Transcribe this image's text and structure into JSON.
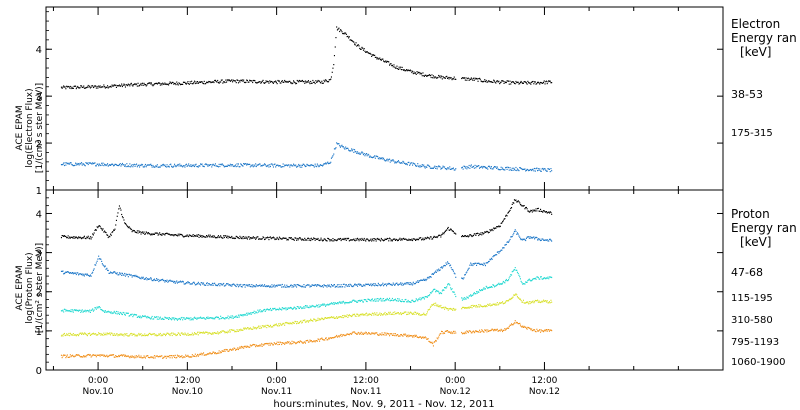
{
  "chart_data": [
    {
      "type": "scatter",
      "panel": "electron",
      "ylabel_lines": [
        "ACE EPAM",
        "log(Electron Flux)",
        "[1/(cm² s ster MeV)]"
      ],
      "legend_title": [
        "Electron",
        "Energy ran",
        "[keV]"
      ],
      "ylim": [
        1,
        4.9
      ],
      "yticks": [
        1,
        2,
        3,
        4
      ],
      "series": [
        {
          "name": "38-53",
          "color": "#000000",
          "points": [
            [
              -5,
              3.18
            ],
            [
              0,
              3.2
            ],
            [
              6,
              3.25
            ],
            [
              12,
              3.28
            ],
            [
              18,
              3.32
            ],
            [
              24,
              3.3
            ],
            [
              30,
              3.3
            ],
            [
              31.2,
              3.35
            ],
            [
              31.6,
              3.7
            ],
            [
              32,
              4.45
            ],
            [
              33,
              4.35
            ],
            [
              35,
              4.05
            ],
            [
              37,
              3.85
            ],
            [
              40,
              3.62
            ],
            [
              42,
              3.52
            ],
            [
              44,
              3.45
            ],
            [
              46,
              3.4
            ],
            [
              48,
              3.38
            ],
            [
              50,
              3.36
            ],
            [
              51,
              3.35
            ],
            [
              52,
              3.32
            ],
            [
              54,
              3.3
            ],
            [
              56,
              3.28
            ],
            [
              58,
              3.28
            ],
            [
              61,
              3.3
            ]
          ],
          "gaps": [
            [
              48.1,
              48.8
            ]
          ]
        },
        {
          "name": "175-315",
          "color": "#1f78c8",
          "points": [
            [
              -5,
              1.55
            ],
            [
              0,
              1.55
            ],
            [
              6,
              1.52
            ],
            [
              12,
              1.52
            ],
            [
              18,
              1.53
            ],
            [
              24,
              1.52
            ],
            [
              30,
              1.52
            ],
            [
              31.2,
              1.6
            ],
            [
              31.6,
              1.8
            ],
            [
              32,
              1.98
            ],
            [
              33,
              1.9
            ],
            [
              35,
              1.8
            ],
            [
              37,
              1.7
            ],
            [
              40,
              1.6
            ],
            [
              42,
              1.55
            ],
            [
              44,
              1.5
            ],
            [
              46,
              1.48
            ],
            [
              48,
              1.45
            ],
            [
              50,
              1.5
            ],
            [
              52,
              1.48
            ],
            [
              56,
              1.45
            ],
            [
              61,
              1.42
            ]
          ],
          "gaps": [
            [
              48.1,
              48.8
            ]
          ]
        }
      ]
    },
    {
      "type": "scatter",
      "panel": "proton",
      "ylabel_lines": [
        "ACE EPAM",
        "log(Proton Flux)",
        "[1/(cm² s ster MeV)]"
      ],
      "legend_title": [
        "Proton",
        "Energy ran",
        "[keV]"
      ],
      "ylim": [
        0,
        4.6
      ],
      "yticks": [
        0,
        1,
        2,
        3,
        4
      ],
      "series": [
        {
          "name": "47-68",
          "color": "#000000",
          "points": [
            [
              -5,
              3.4
            ],
            [
              -1,
              3.38
            ],
            [
              0,
              3.7
            ],
            [
              0.7,
              3.55
            ],
            [
              1.4,
              3.4
            ],
            [
              2.2,
              3.6
            ],
            [
              2.8,
              4.2
            ],
            [
              3.5,
              3.75
            ],
            [
              4.5,
              3.55
            ],
            [
              6,
              3.5
            ],
            [
              10,
              3.45
            ],
            [
              14,
              3.42
            ],
            [
              20,
              3.38
            ],
            [
              26,
              3.35
            ],
            [
              32,
              3.33
            ],
            [
              38,
              3.33
            ],
            [
              44,
              3.35
            ],
            [
              46,
              3.42
            ],
            [
              47,
              3.62
            ],
            [
              48,
              3.5
            ],
            [
              49,
              3.4
            ],
            [
              52,
              3.5
            ],
            [
              54,
              3.7
            ],
            [
              55,
              4.0
            ],
            [
              56,
              4.35
            ],
            [
              57,
              4.2
            ],
            [
              58,
              4.05
            ],
            [
              59,
              4.1
            ],
            [
              61,
              4.0
            ]
          ],
          "gaps": [
            [
              48.1,
              48.8
            ]
          ]
        },
        {
          "name": "115-195",
          "color": "#1f78c8",
          "points": [
            [
              -5,
              2.5
            ],
            [
              -1,
              2.42
            ],
            [
              0,
              2.9
            ],
            [
              0.7,
              2.68
            ],
            [
              1.4,
              2.5
            ],
            [
              3,
              2.45
            ],
            [
              6,
              2.35
            ],
            [
              10,
              2.25
            ],
            [
              14,
              2.2
            ],
            [
              20,
              2.15
            ],
            [
              26,
              2.15
            ],
            [
              32,
              2.15
            ],
            [
              38,
              2.18
            ],
            [
              42,
              2.2
            ],
            [
              44,
              2.3
            ],
            [
              46,
              2.6
            ],
            [
              47,
              2.75
            ],
            [
              48,
              2.4
            ],
            [
              49,
              2.35
            ],
            [
              50,
              2.7
            ],
            [
              52,
              2.7
            ],
            [
              54,
              3.05
            ],
            [
              55,
              3.25
            ],
            [
              56,
              3.55
            ],
            [
              57,
              3.3
            ],
            [
              58,
              3.4
            ],
            [
              59,
              3.35
            ],
            [
              61,
              3.3
            ]
          ],
          "gaps": [
            [
              48.1,
              48.8
            ]
          ]
        },
        {
          "name": "310-580",
          "color": "#20d8d0",
          "points": [
            [
              -5,
              1.52
            ],
            [
              -1,
              1.5
            ],
            [
              0,
              1.62
            ],
            [
              0.7,
              1.5
            ],
            [
              3,
              1.45
            ],
            [
              6,
              1.35
            ],
            [
              10,
              1.3
            ],
            [
              14,
              1.32
            ],
            [
              18,
              1.35
            ],
            [
              22,
              1.52
            ],
            [
              26,
              1.58
            ],
            [
              30,
              1.65
            ],
            [
              34,
              1.75
            ],
            [
              38,
              1.8
            ],
            [
              40,
              1.8
            ],
            [
              42,
              1.75
            ],
            [
              44,
              1.85
            ],
            [
              45,
              2.05
            ],
            [
              46,
              1.95
            ],
            [
              47,
              2.2
            ],
            [
              48,
              1.9
            ],
            [
              49,
              1.8
            ],
            [
              50,
              1.9
            ],
            [
              52,
              2.1
            ],
            [
              54,
              2.2
            ],
            [
              55,
              2.3
            ],
            [
              56,
              2.6
            ],
            [
              57,
              2.2
            ],
            [
              58,
              2.3
            ],
            [
              59,
              2.35
            ],
            [
              61,
              2.35
            ]
          ],
          "gaps": [
            [
              48.1,
              48.8
            ]
          ]
        },
        {
          "name": "795-1193",
          "color": "#d8e02a",
          "points": [
            [
              -5,
              0.9
            ],
            [
              0,
              0.92
            ],
            [
              4,
              0.9
            ],
            [
              8,
              0.9
            ],
            [
              12,
              0.92
            ],
            [
              16,
              0.95
            ],
            [
              20,
              1.05
            ],
            [
              24,
              1.15
            ],
            [
              28,
              1.25
            ],
            [
              32,
              1.35
            ],
            [
              36,
              1.42
            ],
            [
              40,
              1.45
            ],
            [
              42,
              1.45
            ],
            [
              44,
              1.42
            ],
            [
              45,
              1.7
            ],
            [
              46,
              1.62
            ],
            [
              47,
              1.55
            ],
            [
              48,
              1.55
            ],
            [
              49,
              1.58
            ],
            [
              50,
              1.62
            ],
            [
              52,
              1.65
            ],
            [
              54,
              1.7
            ],
            [
              55,
              1.75
            ],
            [
              56,
              1.95
            ],
            [
              57,
              1.75
            ],
            [
              58,
              1.72
            ],
            [
              59,
              1.75
            ],
            [
              61,
              1.75
            ]
          ],
          "gaps": [
            [
              48.1,
              48.8
            ]
          ]
        },
        {
          "name": "1060-1900",
          "color": "#f0901c",
          "points": [
            [
              -5,
              0.35
            ],
            [
              0,
              0.37
            ],
            [
              4,
              0.35
            ],
            [
              8,
              0.33
            ],
            [
              12,
              0.35
            ],
            [
              16,
              0.45
            ],
            [
              20,
              0.6
            ],
            [
              24,
              0.68
            ],
            [
              28,
              0.72
            ],
            [
              30,
              0.78
            ],
            [
              32,
              0.85
            ],
            [
              34,
              0.95
            ],
            [
              38,
              0.92
            ],
            [
              42,
              0.88
            ],
            [
              44,
              0.82
            ],
            [
              45,
              0.65
            ],
            [
              46,
              0.95
            ],
            [
              47,
              0.98
            ],
            [
              48,
              0.95
            ],
            [
              49,
              0.95
            ],
            [
              50,
              0.98
            ],
            [
              52,
              1.0
            ],
            [
              53,
              1.02
            ],
            [
              54,
              1.0
            ],
            [
              55,
              1.05
            ],
            [
              56,
              1.25
            ],
            [
              57,
              1.1
            ],
            [
              58,
              1.05
            ],
            [
              59,
              1.0
            ],
            [
              61,
              1.0
            ]
          ],
          "gaps": [
            [
              48.1,
              48.8
            ]
          ]
        }
      ]
    }
  ],
  "x_axis": {
    "range_hours": [
      -7,
      84
    ],
    "unit_note_hours_from": "Nov. 10, 2011 00:00",
    "major_ticks": [
      {
        "h": 0,
        "time": "0:00",
        "date": "Nov.10"
      },
      {
        "h": 12,
        "time": "12:00",
        "date": "Nov.10"
      },
      {
        "h": 24,
        "time": "0:00",
        "date": "Nov.11"
      },
      {
        "h": 36,
        "time": "12:00",
        "date": "Nov.11"
      },
      {
        "h": 48,
        "time": "0:00",
        "date": "Nov.12"
      },
      {
        "h": 60,
        "time": "12:00",
        "date": "Nov.12"
      }
    ],
    "minor_ticks": [
      -6,
      6,
      18,
      30,
      42,
      54,
      66,
      72,
      78
    ],
    "title": "hours:minutes, Nov.  9, 2011 - Nov. 12, 2011"
  }
}
